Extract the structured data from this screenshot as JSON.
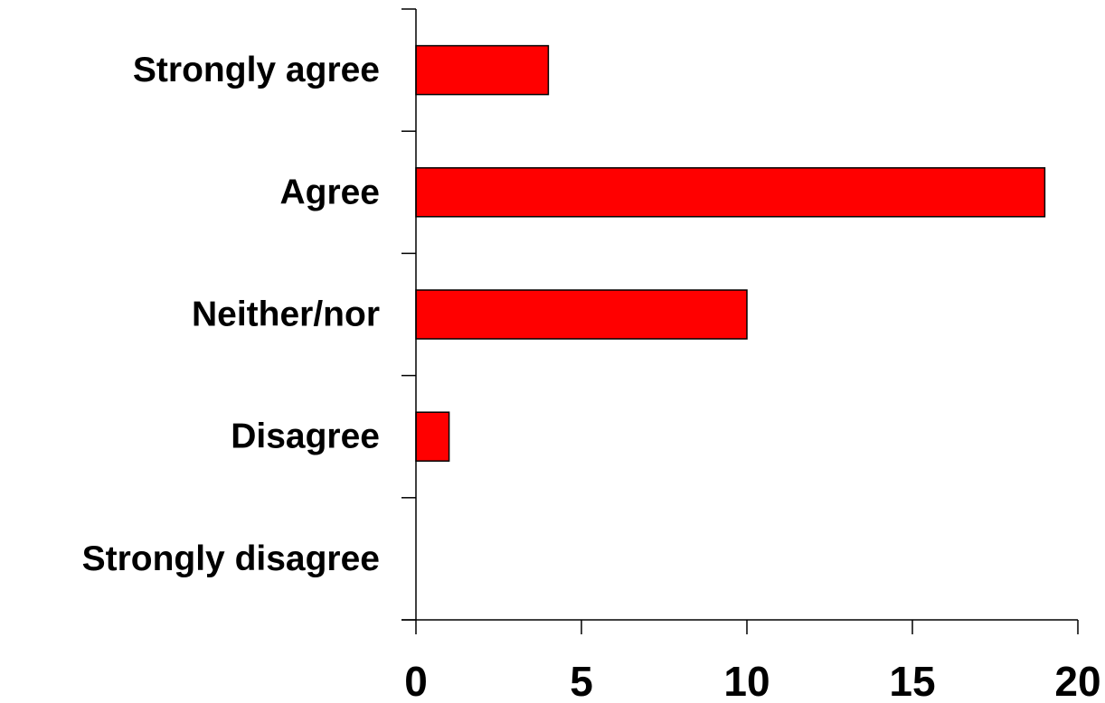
{
  "chart_data": {
    "type": "bar",
    "orientation": "horizontal",
    "title": "",
    "xlabel": "",
    "ylabel": "",
    "categories": [
      "Strongly agree",
      "Agree",
      "Neither/nor",
      "Disagree",
      "Strongly disagree"
    ],
    "values": [
      4,
      19,
      10,
      1,
      0
    ],
    "xlim": [
      0,
      20
    ],
    "xticks": [
      "0",
      "5",
      "10",
      "15",
      "20"
    ],
    "grid": false,
    "legend": "none",
    "bar_color": "#ff0000",
    "bar_edge_color": "#000000"
  }
}
